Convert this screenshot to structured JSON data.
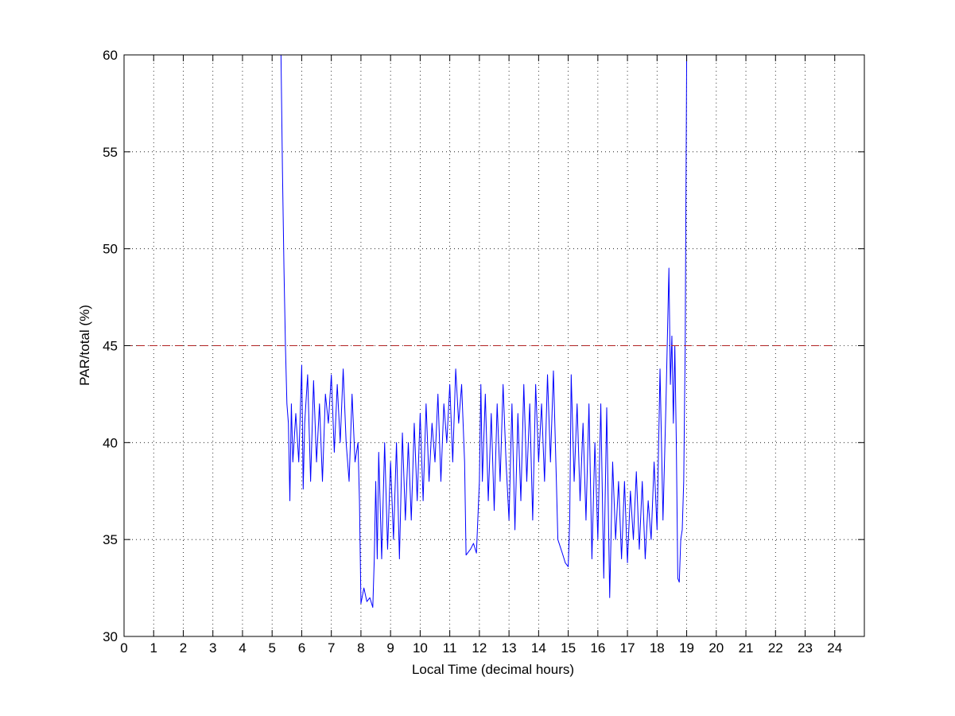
{
  "chart_data": {
    "type": "line",
    "x_label": "Local Time (decimal hours)",
    "y_label": "PAR/total (%)",
    "xlim": [
      0,
      25
    ],
    "ylim": [
      30,
      60
    ],
    "xticks": [
      0,
      1,
      2,
      3,
      4,
      5,
      6,
      7,
      8,
      9,
      10,
      11,
      12,
      13,
      14,
      15,
      16,
      17,
      18,
      19,
      20,
      21,
      22,
      23,
      24
    ],
    "yticks": [
      30,
      35,
      40,
      45,
      50,
      55,
      60
    ],
    "grid": true,
    "series": [
      {
        "color": "#0000ff",
        "line_style": "solid",
        "x": [
          5.3,
          5.35,
          5.4,
          5.45,
          5.5,
          5.55,
          5.6,
          5.65,
          5.7,
          5.8,
          5.9,
          6.0,
          6.05,
          6.1,
          6.2,
          6.3,
          6.4,
          6.5,
          6.6,
          6.7,
          6.8,
          6.9,
          7.0,
          7.1,
          7.2,
          7.3,
          7.4,
          7.5,
          7.6,
          7.7,
          7.8,
          7.9,
          7.95,
          8.0,
          8.1,
          8.2,
          8.3,
          8.4,
          8.45,
          8.5,
          8.55,
          8.6,
          8.7,
          8.8,
          8.9,
          9.0,
          9.1,
          9.2,
          9.3,
          9.4,
          9.5,
          9.6,
          9.7,
          9.8,
          9.9,
          10.0,
          10.1,
          10.2,
          10.3,
          10.4,
          10.5,
          10.6,
          10.7,
          10.8,
          10.9,
          11.0,
          11.1,
          11.2,
          11.3,
          11.4,
          11.5,
          11.55,
          11.7,
          11.8,
          11.9,
          12.0,
          12.05,
          12.1,
          12.2,
          12.3,
          12.4,
          12.5,
          12.6,
          12.7,
          12.8,
          12.9,
          13.0,
          13.1,
          13.2,
          13.3,
          13.4,
          13.5,
          13.6,
          13.7,
          13.8,
          13.9,
          14.0,
          14.1,
          14.2,
          14.3,
          14.4,
          14.5,
          14.6,
          14.65,
          14.8,
          14.9,
          15.0,
          15.05,
          15.1,
          15.2,
          15.3,
          15.4,
          15.5,
          15.6,
          15.7,
          15.8,
          15.9,
          16.0,
          16.1,
          16.2,
          16.3,
          16.4,
          16.5,
          16.6,
          16.7,
          16.8,
          16.9,
          17.0,
          17.1,
          17.2,
          17.3,
          17.4,
          17.5,
          17.6,
          17.7,
          17.8,
          17.9,
          18.0,
          18.1,
          18.2,
          18.3,
          18.4,
          18.45,
          18.5,
          18.55,
          18.6,
          18.65,
          18.7,
          18.75,
          18.8,
          18.85,
          18.9,
          18.95,
          19.0
        ],
        "values": [
          60,
          54,
          49,
          45,
          42,
          41,
          37,
          42,
          39,
          41.5,
          39,
          44,
          37.6,
          41,
          43.5,
          38,
          43.2,
          39,
          42,
          38,
          42.5,
          41,
          43.5,
          39.5,
          43,
          40,
          43.8,
          40,
          38,
          42.5,
          39,
          40,
          37,
          31.7,
          32.5,
          31.8,
          32,
          31.5,
          34,
          38,
          34,
          39.5,
          34,
          40,
          34.5,
          39,
          35,
          40,
          34,
          40.5,
          36,
          40,
          36,
          41,
          37,
          41.5,
          37,
          42,
          38,
          41,
          39,
          42.5,
          38,
          42,
          40,
          43,
          39,
          43.8,
          41,
          43,
          39,
          34.2,
          34.5,
          34.8,
          34.3,
          38,
          43,
          38,
          42.5,
          37,
          41.5,
          36.5,
          42,
          38,
          43,
          39,
          36,
          42,
          35.5,
          41.5,
          37,
          43,
          38,
          42,
          36,
          43,
          39,
          42,
          38,
          43.5,
          39,
          43.7,
          38,
          35,
          34.3,
          33.8,
          33.6,
          36,
          43.5,
          38,
          42,
          37,
          41,
          36,
          42,
          34,
          40,
          35,
          42,
          33,
          41.8,
          32,
          39,
          35,
          38,
          34,
          38,
          33.8,
          37.5,
          35,
          38.5,
          34.5,
          38,
          34,
          37,
          35,
          39,
          35.5,
          43.8,
          36,
          42,
          49,
          43,
          45.5,
          41,
          45,
          40,
          33,
          32.8,
          35,
          35.5,
          38,
          45,
          60
        ]
      },
      {
        "color": "#b22222",
        "line_style": "dashed",
        "x": [
          0,
          24
        ],
        "values": [
          45,
          45
        ]
      }
    ]
  }
}
